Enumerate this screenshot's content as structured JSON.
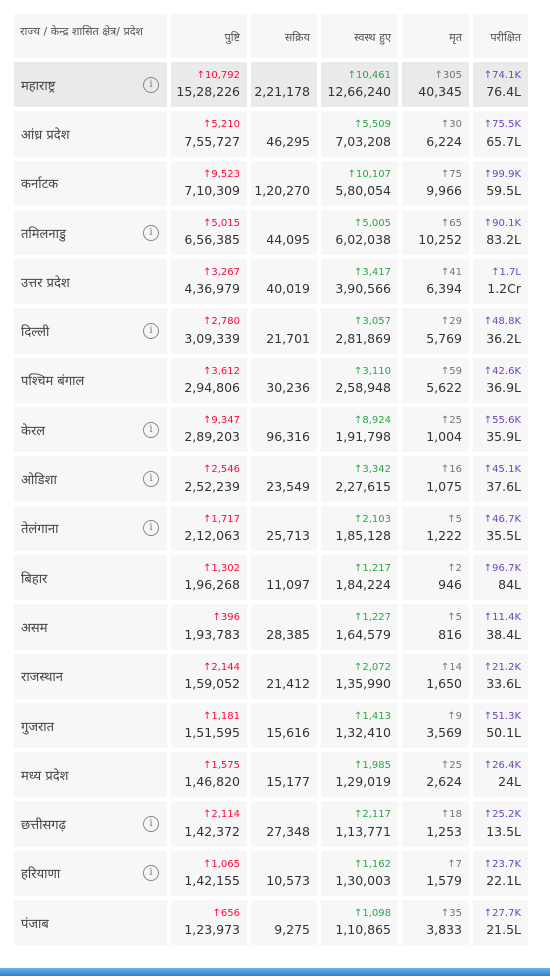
{
  "headers": {
    "state": "राज्य / केन्द्र शासित क्षेत्र/ प्रदेश",
    "confirmed": "पुष्टि",
    "active": "सक्रिय",
    "recovered": "स्वस्थ हुए",
    "deceased": "मृत",
    "tested": "परीक्षित"
  },
  "colors": {
    "confirmed": "#ff073a",
    "recovered": "#28a745",
    "deceased": "#6c757d",
    "tested": "#6f42c1"
  },
  "rows": [
    {
      "name": "महाराष्ट्र",
      "info": true,
      "dc": "↑10,792",
      "c": "15,28,226",
      "a": "2,21,178",
      "dr": "↑10,461",
      "r": "12,66,240",
      "dd": "↑305",
      "d": "40,345",
      "dt": "↑74.1K",
      "t": "76.4L"
    },
    {
      "name": "आंध्र प्रदेश",
      "info": false,
      "dc": "↑5,210",
      "c": "7,55,727",
      "a": "46,295",
      "dr": "↑5,509",
      "r": "7,03,208",
      "dd": "↑30",
      "d": "6,224",
      "dt": "↑75.5K",
      "t": "65.7L"
    },
    {
      "name": "कर्नाटक",
      "info": false,
      "dc": "↑9,523",
      "c": "7,10,309",
      "a": "1,20,270",
      "dr": "↑10,107",
      "r": "5,80,054",
      "dd": "↑75",
      "d": "9,966",
      "dt": "↑99.9K",
      "t": "59.5L"
    },
    {
      "name": "तमिलनाडु",
      "info": true,
      "dc": "↑5,015",
      "c": "6,56,385",
      "a": "44,095",
      "dr": "↑5,005",
      "r": "6,02,038",
      "dd": "↑65",
      "d": "10,252",
      "dt": "↑90.1K",
      "t": "83.2L"
    },
    {
      "name": "उत्तर प्रदेश",
      "info": false,
      "dc": "↑3,267",
      "c": "4,36,979",
      "a": "40,019",
      "dr": "↑3,417",
      "r": "3,90,566",
      "dd": "↑41",
      "d": "6,394",
      "dt": "↑1.7L",
      "t": "1.2Cr"
    },
    {
      "name": "दिल्ली",
      "info": true,
      "dc": "↑2,780",
      "c": "3,09,339",
      "a": "21,701",
      "dr": "↑3,057",
      "r": "2,81,869",
      "dd": "↑29",
      "d": "5,769",
      "dt": "↑48.8K",
      "t": "36.2L"
    },
    {
      "name": "पश्चिम बंगाल",
      "info": false,
      "dc": "↑3,612",
      "c": "2,94,806",
      "a": "30,236",
      "dr": "↑3,110",
      "r": "2,58,948",
      "dd": "↑59",
      "d": "5,622",
      "dt": "↑42.6K",
      "t": "36.9L"
    },
    {
      "name": "केरल",
      "info": true,
      "dc": "↑9,347",
      "c": "2,89,203",
      "a": "96,316",
      "dr": "↑8,924",
      "r": "1,91,798",
      "dd": "↑25",
      "d": "1,004",
      "dt": "↑55.6K",
      "t": "35.9L"
    },
    {
      "name": "ओडिशा",
      "info": true,
      "dc": "↑2,546",
      "c": "2,52,239",
      "a": "23,549",
      "dr": "↑3,342",
      "r": "2,27,615",
      "dd": "↑16",
      "d": "1,075",
      "dt": "↑45.1K",
      "t": "37.6L"
    },
    {
      "name": "तेलंगाना",
      "info": true,
      "dc": "↑1,717",
      "c": "2,12,063",
      "a": "25,713",
      "dr": "↑2,103",
      "r": "1,85,128",
      "dd": "↑5",
      "d": "1,222",
      "dt": "↑46.7K",
      "t": "35.5L"
    },
    {
      "name": "बिहार",
      "info": false,
      "dc": "↑1,302",
      "c": "1,96,268",
      "a": "11,097",
      "dr": "↑1,217",
      "r": "1,84,224",
      "dd": "↑2",
      "d": "946",
      "dt": "↑96.7K",
      "t": "84L"
    },
    {
      "name": "असम",
      "info": false,
      "dc": "↑396",
      "c": "1,93,783",
      "a": "28,385",
      "dr": "↑1,227",
      "r": "1,64,579",
      "dd": "↑5",
      "d": "816",
      "dt": "↑11.4K",
      "t": "38.4L"
    },
    {
      "name": "राजस्थान",
      "info": false,
      "dc": "↑2,144",
      "c": "1,59,052",
      "a": "21,412",
      "dr": "↑2,072",
      "r": "1,35,990",
      "dd": "↑14",
      "d": "1,650",
      "dt": "↑21.2K",
      "t": "33.6L"
    },
    {
      "name": "गुजरात",
      "info": false,
      "dc": "↑1,181",
      "c": "1,51,595",
      "a": "15,616",
      "dr": "↑1,413",
      "r": "1,32,410",
      "dd": "↑9",
      "d": "3,569",
      "dt": "↑51.3K",
      "t": "50.1L"
    },
    {
      "name": "मध्य प्रदेश",
      "info": false,
      "dc": "↑1,575",
      "c": "1,46,820",
      "a": "15,177",
      "dr": "↑1,985",
      "r": "1,29,019",
      "dd": "↑25",
      "d": "2,624",
      "dt": "↑26.4K",
      "t": "24L"
    },
    {
      "name": "छत्तीसगढ़",
      "info": true,
      "dc": "↑2,114",
      "c": "1,42,372",
      "a": "27,348",
      "dr": "↑2,117",
      "r": "1,13,771",
      "dd": "↑18",
      "d": "1,253",
      "dt": "↑25.2K",
      "t": "13.5L"
    },
    {
      "name": "हरियाणा",
      "info": true,
      "dc": "↑1,065",
      "c": "1,42,155",
      "a": "10,573",
      "dr": "↑1,162",
      "r": "1,30,003",
      "dd": "↑7",
      "d": "1,579",
      "dt": "↑23.7K",
      "t": "22.1L"
    },
    {
      "name": "पंजाब",
      "info": false,
      "dc": "↑656",
      "c": "1,23,973",
      "a": "9,275",
      "dr": "↑1,098",
      "r": "1,10,865",
      "dd": "↑35",
      "d": "3,833",
      "dt": "↑27.7K",
      "t": "21.5L"
    }
  ]
}
